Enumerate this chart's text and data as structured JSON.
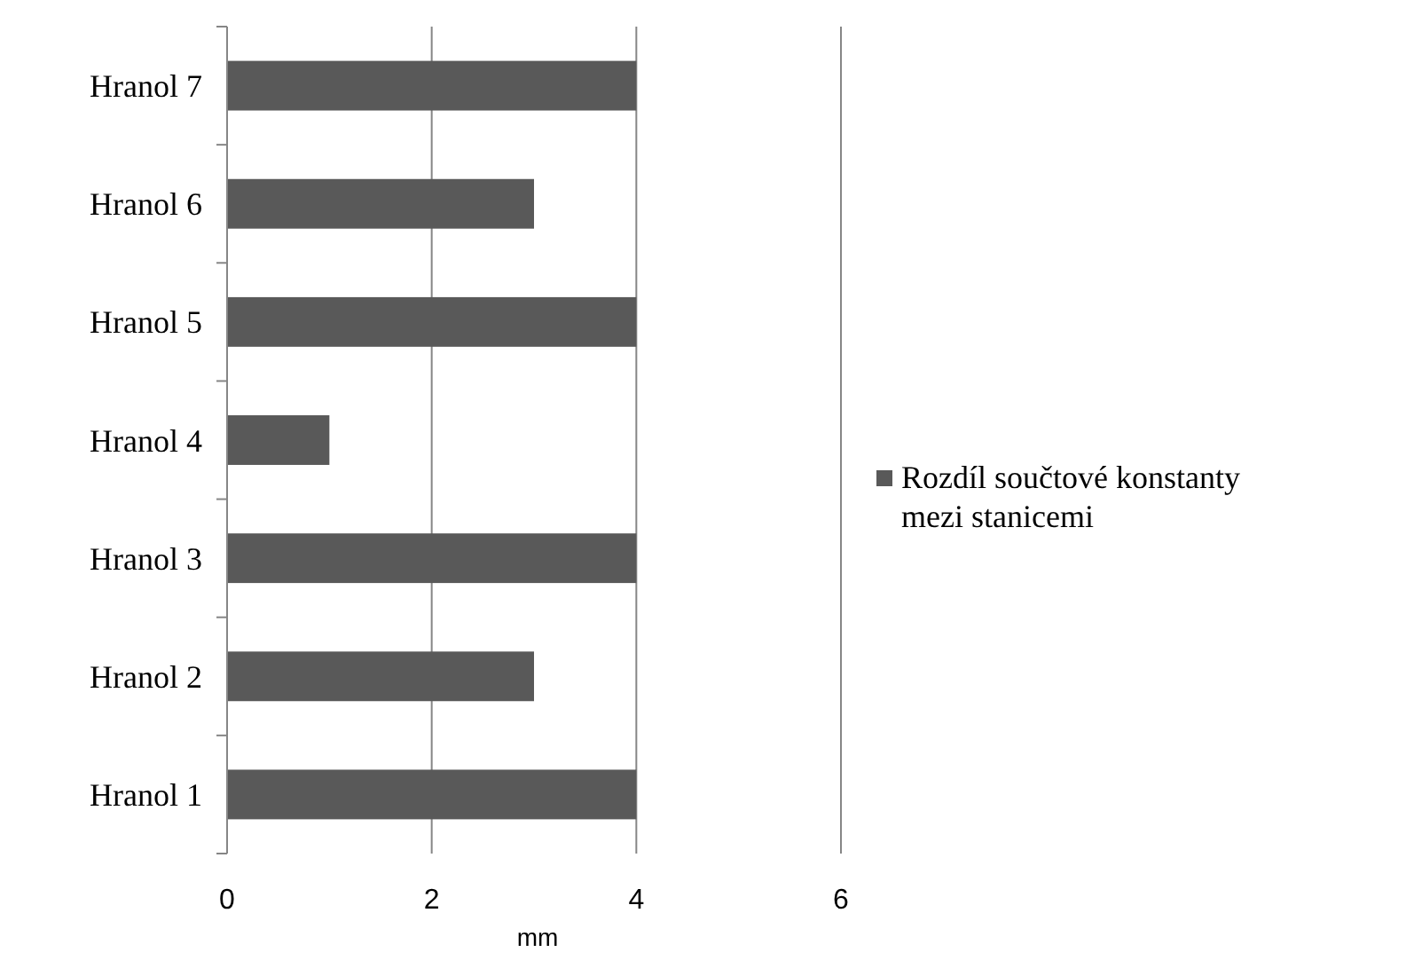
{
  "chart_data": {
    "type": "bar",
    "orientation": "horizontal",
    "categories": [
      "Hranol 7",
      "Hranol 6",
      "Hranol 5",
      "Hranol 4",
      "Hranol 3",
      "Hranol 2",
      "Hranol 1"
    ],
    "series": [
      {
        "name": "Rozdíl součtové konstanty mezi stanicemi",
        "color": "#595959",
        "values": [
          4,
          3,
          4,
          1,
          4,
          3,
          4
        ]
      }
    ],
    "xlim": [
      0,
      6
    ],
    "xticks": [
      0,
      2,
      4,
      6
    ],
    "xlabel": "mm",
    "grid": "x",
    "legend": "right"
  }
}
